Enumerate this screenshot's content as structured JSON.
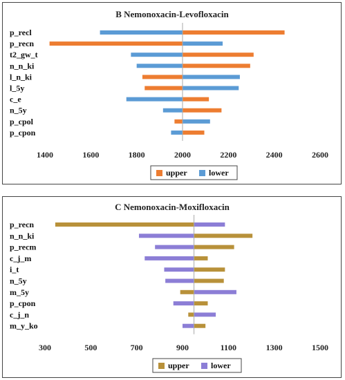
{
  "chart_data": [
    {
      "type": "bar",
      "orientation": "horizontal",
      "title": "B Nemonoxacin-Levofloxacin",
      "categories": [
        "p_recl",
        "p_recn",
        "t2_gw_t",
        "n_n_ki",
        "l_n_ki",
        "l_5y",
        "c_e",
        "n_5y",
        "p_cpol",
        "p_cpon"
      ],
      "base": 2000,
      "xlim": [
        1400,
        2600
      ],
      "xticks": [
        1400,
        1600,
        1800,
        2000,
        2200,
        2400,
        2600
      ],
      "grid": false,
      "legend_position": "bottom",
      "series": [
        {
          "name": "upper",
          "color": "#ED7D31",
          "values": [
            2445,
            1420,
            2310,
            2295,
            1825,
            1835,
            2115,
            2170,
            1965,
            2095
          ]
        },
        {
          "name": "lower",
          "color": "#5B9BD5",
          "values": [
            1640,
            2175,
            1775,
            1800,
            2250,
            2245,
            1755,
            1915,
            2120,
            1950
          ]
        }
      ]
    },
    {
      "type": "bar",
      "orientation": "horizontal",
      "title": "C Nemonoxacin-Moxifloxacin",
      "categories": [
        "p_recn",
        "n_n_ki",
        "p_recm",
        "c_j_m",
        "i_t",
        "n_5y",
        "m_5y",
        "p_cpon",
        "c_j_n",
        "m_y_ko"
      ],
      "base": 950,
      "xlim": [
        300,
        1500
      ],
      "xticks": [
        300,
        500,
        700,
        900,
        1100,
        1300,
        1500
      ],
      "grid": false,
      "legend_position": "bottom",
      "series": [
        {
          "name": "upper",
          "color": "#B8913A",
          "values": [
            345,
            1205,
            1125,
            1010,
            1085,
            1080,
            890,
            1010,
            925,
            1000
          ]
        },
        {
          "name": "lower",
          "color": "#8C7ED6",
          "values": [
            1085,
            710,
            780,
            735,
            820,
            825,
            1135,
            860,
            1045,
            900
          ]
        }
      ]
    }
  ]
}
